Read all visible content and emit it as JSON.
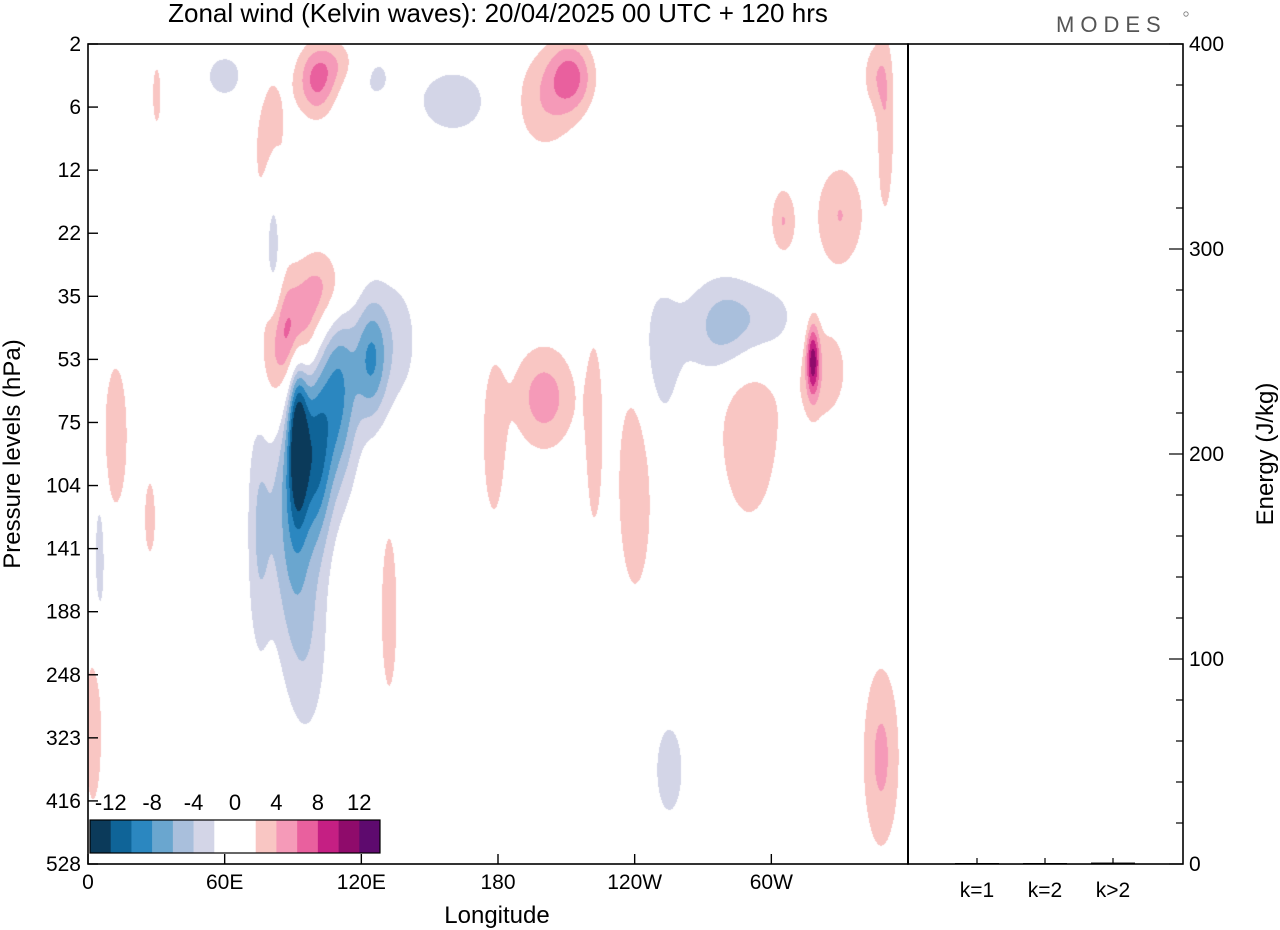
{
  "chart_data": {
    "type": "heatmap",
    "title": "Zonal wind (Kelvin waves):  20/04/2025  00 UTC  + 120 hrs",
    "logo": "MODES",
    "xlabel": "Longitude",
    "ylabel": "Pressure levels (hPa)",
    "x_ticks": [
      "0",
      "60E",
      "120E",
      "180",
      "120W",
      "60W"
    ],
    "x_tick_degrees": [
      0,
      60,
      120,
      180,
      240,
      300
    ],
    "xlim": [
      0,
      360
    ],
    "y_ticks": [
      "2",
      "6",
      "12",
      "22",
      "35",
      "53",
      "75",
      "104",
      "141",
      "188",
      "248",
      "323",
      "416",
      "528"
    ],
    "colorbar": {
      "labels": [
        "-12",
        "-8",
        "-4",
        "0",
        "4",
        "8",
        "12"
      ],
      "colors": [
        "#0b3a5a",
        "#0f6498",
        "#2b87c0",
        "#6aa6cf",
        "#a9bfdc",
        "#d3d5e7",
        "#ffffff",
        "#ffffff",
        "#f9c6c3",
        "#f59ab8",
        "#e9609e",
        "#c51f83",
        "#8f0b6b",
        "#5e0a6e"
      ]
    },
    "anomalies": [
      {
        "lon": 92,
        "level": 6.2,
        "amp": -11,
        "sx": 3,
        "sy": 0.9
      },
      {
        "lon": 88,
        "level": 7.2,
        "amp": -6,
        "sx": 6,
        "sy": 1.5
      },
      {
        "lon": 100,
        "level": 6.5,
        "amp": -9,
        "sx": 5,
        "sy": 1.0
      },
      {
        "lon": 110,
        "level": 5.5,
        "amp": -8,
        "sx": 6,
        "sy": 1.1
      },
      {
        "lon": 124,
        "level": 5.0,
        "amp": -7,
        "sx": 5,
        "sy": 0.7
      },
      {
        "lon": 75,
        "level": 7.7,
        "amp": -4,
        "sx": 4,
        "sy": 1.5
      },
      {
        "lon": 96,
        "level": 9.3,
        "amp": -3.5,
        "sx": 7,
        "sy": 1.3
      },
      {
        "lon": 135,
        "level": 4.7,
        "amp": -3,
        "sx": 8,
        "sy": 0.8
      },
      {
        "lon": 90,
        "level": 4.6,
        "amp": 7,
        "sx": 7,
        "sy": 0.6
      },
      {
        "lon": 104,
        "level": 3.9,
        "amp": 5,
        "sx": 8,
        "sy": 0.5
      },
      {
        "lon": 82,
        "level": 5.3,
        "amp": 3,
        "sx": 6,
        "sy": 0.8
      },
      {
        "lon": 100,
        "level": 0.6,
        "amp": 6,
        "sx": 6,
        "sy": 0.4
      },
      {
        "lon": 80,
        "level": 1.8,
        "amp": 3.5,
        "sx": 6,
        "sy": 1.3
      },
      {
        "lon": 110,
        "level": 0.3,
        "amp": 3,
        "sx": 8,
        "sy": 0.3
      },
      {
        "lon": 212,
        "level": 0.5,
        "amp": 6,
        "sx": 7,
        "sy": 0.4
      },
      {
        "lon": 200,
        "level": 0.9,
        "amp": 3.5,
        "sx": 10,
        "sy": 0.6
      },
      {
        "lon": 160,
        "level": 0.9,
        "amp": -3.5,
        "sx": 12,
        "sy": 0.4
      },
      {
        "lon": 125,
        "level": 0.5,
        "amp": -2.5,
        "sx": 8,
        "sy": 0.4
      },
      {
        "lon": 60,
        "level": 0.5,
        "amp": -2.5,
        "sx": 10,
        "sy": 0.4
      },
      {
        "lon": 80,
        "level": 3.0,
        "amp": -3,
        "sx": 3,
        "sy": 0.8
      },
      {
        "lon": 200,
        "level": 5.6,
        "amp": 5,
        "sx": 10,
        "sy": 0.6
      },
      {
        "lon": 240,
        "level": 6.9,
        "amp": 4,
        "sx": 6,
        "sy": 1.4
      },
      {
        "lon": 222,
        "level": 6.2,
        "amp": 3.5,
        "sx": 3,
        "sy": 1.2
      },
      {
        "lon": 178,
        "level": 6.3,
        "amp": 3.5,
        "sx": 4,
        "sy": 1.0
      },
      {
        "lon": 290,
        "level": 6.0,
        "amp": 4,
        "sx": 10,
        "sy": 1.2
      },
      {
        "lon": 318,
        "level": 5.0,
        "amp": 9,
        "sx": 2,
        "sy": 0.4
      },
      {
        "lon": 322,
        "level": 5.0,
        "amp": 3.5,
        "sx": 10,
        "sy": 0.8
      },
      {
        "lon": 280,
        "level": 4.5,
        "amp": -4.5,
        "sx": 12,
        "sy": 0.6
      },
      {
        "lon": 300,
        "level": 4.4,
        "amp": -3,
        "sx": 18,
        "sy": 0.5
      },
      {
        "lon": 250,
        "level": 5.0,
        "amp": -3,
        "sx": 8,
        "sy": 1.0
      },
      {
        "lon": 330,
        "level": 2.7,
        "amp": 4,
        "sx": 8,
        "sy": 0.6
      },
      {
        "lon": 350,
        "level": 1.3,
        "amp": 3.5,
        "sx": 3,
        "sy": 1.1
      },
      {
        "lon": 348,
        "level": 11.3,
        "amp": 4.5,
        "sx": 6,
        "sy": 1.1
      },
      {
        "lon": 2,
        "level": 10.9,
        "amp": 4,
        "sx": 3,
        "sy": 0.9
      },
      {
        "lon": 132,
        "level": 9.0,
        "amp": 3.5,
        "sx": 3,
        "sy": 1.1
      },
      {
        "lon": 255,
        "level": 11.5,
        "amp": -3.5,
        "sx": 5,
        "sy": 0.6
      },
      {
        "lon": 12,
        "level": 6.2,
        "amp": 4,
        "sx": 4,
        "sy": 0.9
      },
      {
        "lon": 27,
        "level": 7.5,
        "amp": 3.5,
        "sx": 2,
        "sy": 0.5
      },
      {
        "lon": 305,
        "level": 2.8,
        "amp": 4,
        "sx": 4,
        "sy": 0.4
      },
      {
        "lon": 345,
        "level": 0.5,
        "amp": 3,
        "sx": 4,
        "sy": 0.4
      },
      {
        "lon": 300,
        "level": 0.4,
        "amp": -2,
        "sx": 4,
        "sy": 0.3
      },
      {
        "lon": 5,
        "level": 8.1,
        "amp": -3,
        "sx": 2,
        "sy": 0.9
      },
      {
        "lon": 82,
        "level": 3.2,
        "amp": -2.5,
        "sx": 2.5,
        "sy": 1.0
      },
      {
        "lon": 30,
        "level": 0.8,
        "amp": 2.8,
        "sx": 2,
        "sy": 0.5
      }
    ],
    "energy_panel": {
      "ylabel": "Energy (J/kg)",
      "y_ticks": [
        "0",
        "100",
        "200",
        "300",
        "400"
      ],
      "y_tick_values": [
        0,
        100,
        200,
        300,
        400
      ],
      "ylim": [
        0,
        400
      ],
      "categories": [
        "k=1",
        "k=2",
        "k>2"
      ],
      "values": [
        0.2,
        0.3,
        0.7
      ]
    }
  }
}
